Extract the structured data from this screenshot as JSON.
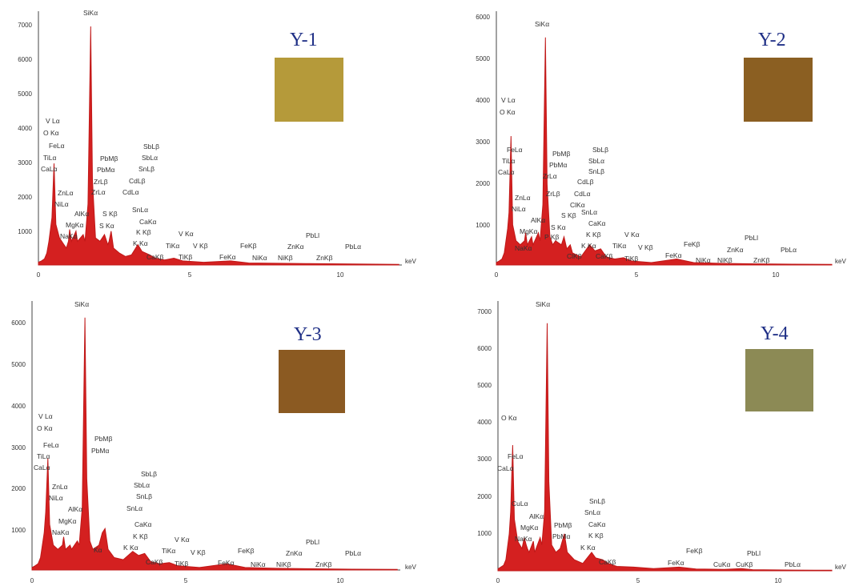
{
  "chart_data": [
    {
      "type": "line",
      "title": "Y-1",
      "xlabel": "keV",
      "ylabel": "",
      "xlim": [
        0,
        12.1
      ],
      "ylim": [
        0,
        7500
      ],
      "x_ticks": [
        "0",
        "5",
        "10"
      ],
      "y_ticks": [
        "1000",
        "2000",
        "3000",
        "4000",
        "5000",
        "6000",
        "7000"
      ],
      "color_swatch": "#b59a3a",
      "series": [
        {
          "color": "#d42020",
          "points": [
            [
              0.0,
              80
            ],
            [
              0.1,
              120
            ],
            [
              0.2,
              180
            ],
            [
              0.28,
              350
            ],
            [
              0.35,
              700
            ],
            [
              0.45,
              1400
            ],
            [
              0.52,
              3000
            ],
            [
              0.58,
              1200
            ],
            [
              0.7,
              800
            ],
            [
              0.85,
              600
            ],
            [
              0.93,
              500
            ],
            [
              1.0,
              700
            ],
            [
              1.04,
              1050
            ],
            [
              1.1,
              700
            ],
            [
              1.25,
              1000
            ],
            [
              1.3,
              700
            ],
            [
              1.49,
              900
            ],
            [
              1.55,
              700
            ],
            [
              1.65,
              1800
            ],
            [
              1.74,
              7050
            ],
            [
              1.8,
              2500
            ],
            [
              1.9,
              800
            ],
            [
              2.05,
              700
            ],
            [
              2.2,
              900
            ],
            [
              2.31,
              600
            ],
            [
              2.35,
              700
            ],
            [
              2.42,
              1000
            ],
            [
              2.5,
              500
            ],
            [
              2.7,
              350
            ],
            [
              2.9,
              250
            ],
            [
              3.1,
              300
            ],
            [
              3.31,
              600
            ],
            [
              3.45,
              400
            ],
            [
              3.7,
              300
            ],
            [
              3.9,
              200
            ],
            [
              4.2,
              150
            ],
            [
              4.51,
              200
            ],
            [
              4.8,
              120
            ],
            [
              5.5,
              80
            ],
            [
              6.4,
              120
            ],
            [
              7.0,
              60
            ],
            [
              8.0,
              50
            ],
            [
              9.0,
              40
            ],
            [
              10.5,
              30
            ],
            [
              12.0,
              20
            ]
          ]
        }
      ],
      "peak_labels": [
        "SiKα",
        "V Lα",
        "O Kα",
        "FeLα",
        "TiLα",
        "CaLα",
        "ZnLα",
        "NiLα",
        "AlKα",
        "MgKα",
        "NaKα",
        "PbMβ",
        "PbMα",
        "ZrLβ",
        "ZrLα",
        "S Kβ",
        "S Kα",
        "SbLβ",
        "SbLα",
        "SnLβ",
        "CdLβ",
        "CdLα",
        "SnLα",
        "CaKα",
        "K Kβ",
        "K Kα",
        "CaKβ",
        "V Kα",
        "TiKα",
        "V Kβ",
        "TiKβ",
        "FeKβ",
        "FeKα",
        "NiKα",
        "NiKβ",
        "ZnKα",
        "PbLl",
        "ZnKβ",
        "PbLα"
      ]
    },
    {
      "type": "line",
      "title": "Y-2",
      "xlabel": "keV",
      "ylabel": "",
      "xlim": [
        0,
        11.9
      ],
      "ylim": [
        0,
        6300
      ],
      "x_ticks": [
        "0",
        "5",
        "10"
      ],
      "y_ticks": [
        "1000",
        "2000",
        "3000",
        "4000",
        "5000",
        "6000"
      ],
      "color_swatch": "#8b5f22",
      "series": [
        {
          "color": "#d42020",
          "points": [
            [
              0.0,
              60
            ],
            [
              0.1,
              100
            ],
            [
              0.2,
              150
            ],
            [
              0.28,
              300
            ],
            [
              0.4,
              900
            ],
            [
              0.45,
              1300
            ],
            [
              0.52,
              3200
            ],
            [
              0.58,
              1000
            ],
            [
              0.7,
              600
            ],
            [
              0.85,
              500
            ],
            [
              1.0,
              600
            ],
            [
              1.04,
              800
            ],
            [
              1.1,
              500
            ],
            [
              1.25,
              700
            ],
            [
              1.3,
              500
            ],
            [
              1.49,
              800
            ],
            [
              1.55,
              600
            ],
            [
              1.65,
              1500
            ],
            [
              1.74,
              5650
            ],
            [
              1.8,
              2000
            ],
            [
              1.9,
              700
            ],
            [
              2.0,
              500
            ],
            [
              2.1,
              600
            ],
            [
              2.31,
              500
            ],
            [
              2.4,
              700
            ],
            [
              2.5,
              400
            ],
            [
              2.62,
              500
            ],
            [
              2.7,
              300
            ],
            [
              3.0,
              200
            ],
            [
              3.31,
              500
            ],
            [
              3.5,
              350
            ],
            [
              3.7,
              400
            ],
            [
              3.9,
              200
            ],
            [
              4.2,
              150
            ],
            [
              4.51,
              180
            ],
            [
              4.8,
              100
            ],
            [
              5.5,
              60
            ],
            [
              6.4,
              150
            ],
            [
              7.0,
              60
            ],
            [
              8.0,
              40
            ],
            [
              9.0,
              30
            ],
            [
              10.5,
              20
            ],
            [
              11.9,
              15
            ]
          ]
        }
      ],
      "peak_labels": [
        "SiKα",
        "V Lα",
        "O Kα",
        "FeLα",
        "TiLα",
        "CaLα",
        "PbMβ",
        "PbMα",
        "ZrLα",
        "ZrLβ",
        "SbLβ",
        "SbLα",
        "SnLβ",
        "CdLβ",
        "CdLα",
        "ZnLα",
        "NiLα",
        "ClKα",
        "S Kβ",
        "S Kα",
        "P Kβ",
        "AlKα",
        "MgKα",
        "NaKα",
        "SnLα",
        "CaKα",
        "K Kβ",
        "K Kα",
        "CaKβ",
        "ClKβ",
        "V Kα",
        "TiKα",
        "V Kβ",
        "TiKβ",
        "FeKβ",
        "FeKα",
        "NiKα",
        "NiKβ",
        "ZnKα",
        "PbLl",
        "ZnKβ",
        "PbLα"
      ]
    },
    {
      "type": "line",
      "title": "Y-3",
      "xlabel": "keV",
      "ylabel": "",
      "xlim": [
        0,
        12.1
      ],
      "ylim": [
        0,
        6500
      ],
      "x_ticks": [
        "0",
        "5",
        "10"
      ],
      "y_ticks": [
        "1000",
        "2000",
        "3000",
        "4000",
        "5000",
        "6000"
      ],
      "color_swatch": "#8b5a22",
      "series": [
        {
          "color": "#d42020",
          "points": [
            [
              0.0,
              60
            ],
            [
              0.1,
              100
            ],
            [
              0.2,
              150
            ],
            [
              0.28,
              300
            ],
            [
              0.4,
              900
            ],
            [
              0.45,
              1400
            ],
            [
              0.52,
              2700
            ],
            [
              0.58,
              1100
            ],
            [
              0.7,
              600
            ],
            [
              0.85,
              500
            ],
            [
              1.0,
              600
            ],
            [
              1.04,
              800
            ],
            [
              1.1,
              500
            ],
            [
              1.25,
              600
            ],
            [
              1.3,
              500
            ],
            [
              1.49,
              700
            ],
            [
              1.55,
              600
            ],
            [
              1.65,
              1500
            ],
            [
              1.74,
              6100
            ],
            [
              1.8,
              2200
            ],
            [
              1.9,
              700
            ],
            [
              2.0,
              500
            ],
            [
              2.2,
              600
            ],
            [
              2.31,
              900
            ],
            [
              2.4,
              1000
            ],
            [
              2.5,
              500
            ],
            [
              2.7,
              300
            ],
            [
              3.0,
              250
            ],
            [
              3.31,
              450
            ],
            [
              3.5,
              350
            ],
            [
              3.7,
              400
            ],
            [
              3.9,
              200
            ],
            [
              4.2,
              150
            ],
            [
              4.51,
              180
            ],
            [
              4.8,
              100
            ],
            [
              5.5,
              60
            ],
            [
              6.4,
              150
            ],
            [
              7.0,
              60
            ],
            [
              8.0,
              40
            ],
            [
              9.0,
              30
            ],
            [
              10.5,
              20
            ],
            [
              12.0,
              15
            ]
          ]
        }
      ],
      "peak_labels": [
        "SiKα",
        "V Lα",
        "O Kα",
        "FeLα",
        "TiLα",
        "CaLα",
        "PbMβ",
        "PbMα",
        "ZnLα",
        "NiLα",
        "AlKα",
        "MgKα",
        "NaKα",
        "Kα",
        "SbLβ",
        "SbLα",
        "SnLβ",
        "SnLα",
        "CaKα",
        "K Kβ",
        "K Kα",
        "CaKβ",
        "V Kα",
        "TiKα",
        "V Kβ",
        "TiKβ",
        "FeKβ",
        "FeKα",
        "NiKα",
        "NiKβ",
        "ZnKα",
        "PbLl",
        "ZnKβ",
        "PbLα"
      ]
    },
    {
      "type": "line",
      "title": "Y-4",
      "xlabel": "keV",
      "ylabel": "",
      "xlim": [
        0,
        11.8
      ],
      "ylim": [
        0,
        7300
      ],
      "x_ticks": [
        "0",
        "5",
        "10"
      ],
      "y_ticks": [
        "1000",
        "2000",
        "3000",
        "4000",
        "5000",
        "6000",
        "7000"
      ],
      "color_swatch": "#8c8a55",
      "series": [
        {
          "color": "#d42020",
          "points": [
            [
              0.0,
              50
            ],
            [
              0.1,
              100
            ],
            [
              0.2,
              150
            ],
            [
              0.28,
              300
            ],
            [
              0.4,
              1000
            ],
            [
              0.45,
              1600
            ],
            [
              0.52,
              3400
            ],
            [
              0.58,
              1400
            ],
            [
              0.7,
              800
            ],
            [
              0.85,
              600
            ],
            [
              0.93,
              900
            ],
            [
              1.0,
              700
            ],
            [
              1.04,
              600
            ],
            [
              1.1,
              500
            ],
            [
              1.25,
              800
            ],
            [
              1.3,
              500
            ],
            [
              1.49,
              900
            ],
            [
              1.55,
              700
            ],
            [
              1.65,
              1600
            ],
            [
              1.74,
              6700
            ],
            [
              1.8,
              2400
            ],
            [
              1.9,
              700
            ],
            [
              2.05,
              500
            ],
            [
              2.2,
              600
            ],
            [
              2.35,
              1000
            ],
            [
              2.45,
              500
            ],
            [
              2.7,
              300
            ],
            [
              3.0,
              200
            ],
            [
              3.31,
              500
            ],
            [
              3.45,
              350
            ],
            [
              3.7,
              300
            ],
            [
              3.9,
              200
            ],
            [
              4.2,
              120
            ],
            [
              4.8,
              100
            ],
            [
              5.5,
              60
            ],
            [
              6.4,
              100
            ],
            [
              7.0,
              50
            ],
            [
              8.0,
              40
            ],
            [
              8.6,
              60
            ],
            [
              9.0,
              30
            ],
            [
              10.5,
              20
            ],
            [
              11.8,
              15
            ]
          ]
        }
      ],
      "peak_labels": [
        "SiKα",
        "O Kα",
        "FeLα",
        "CaLα",
        "CuLα",
        "AlKα",
        "MgKα",
        "NaKα",
        "PbMβ",
        "PbMα",
        "SnLβ",
        "SnLα",
        "CaKα",
        "K Kβ",
        "K Kα",
        "CaKβ",
        "FeKβ",
        "FeKα",
        "CuKα",
        "CuKβ",
        "PbLl",
        "PbLα"
      ]
    }
  ]
}
